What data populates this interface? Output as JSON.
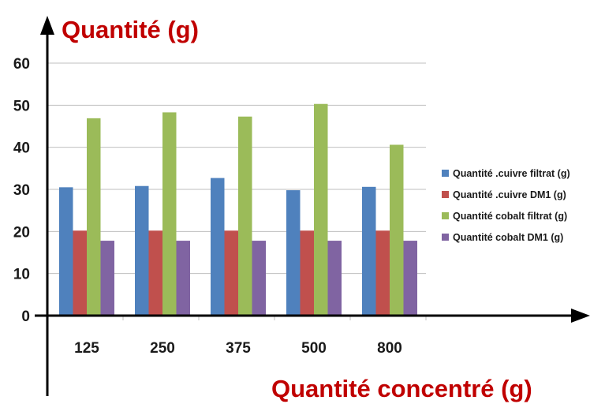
{
  "chart_data": {
    "type": "bar",
    "ylabel": "Quantité (g)",
    "xlabel": "Quantité concentré (g)",
    "categories": [
      "125",
      "250",
      "375",
      "500",
      "800"
    ],
    "yticks": [
      "0",
      "10",
      "20",
      "30",
      "40",
      "50",
      "60"
    ],
    "ylim": [
      0,
      60
    ],
    "grid": true,
    "legend_position": "right",
    "series": [
      {
        "name": "Quantité .cuivre filtrat (g)",
        "color": "#4f81bd",
        "values": [
          30.5,
          30.8,
          32.7,
          29.8,
          30.6
        ]
      },
      {
        "name": "Quantité .cuivre DM1 (g)",
        "color": "#c0504d",
        "values": [
          20.2,
          20.2,
          20.2,
          20.2,
          20.2
        ]
      },
      {
        "name": "Quantité cobalt filtrat (g)",
        "color": "#9bbb59",
        "values": [
          46.9,
          48.3,
          47.3,
          50.3,
          40.6
        ]
      },
      {
        "name": "Quantité cobalt DM1 (g)",
        "color": "#8064a2",
        "values": [
          17.8,
          17.8,
          17.8,
          17.8,
          17.8
        ]
      }
    ]
  }
}
